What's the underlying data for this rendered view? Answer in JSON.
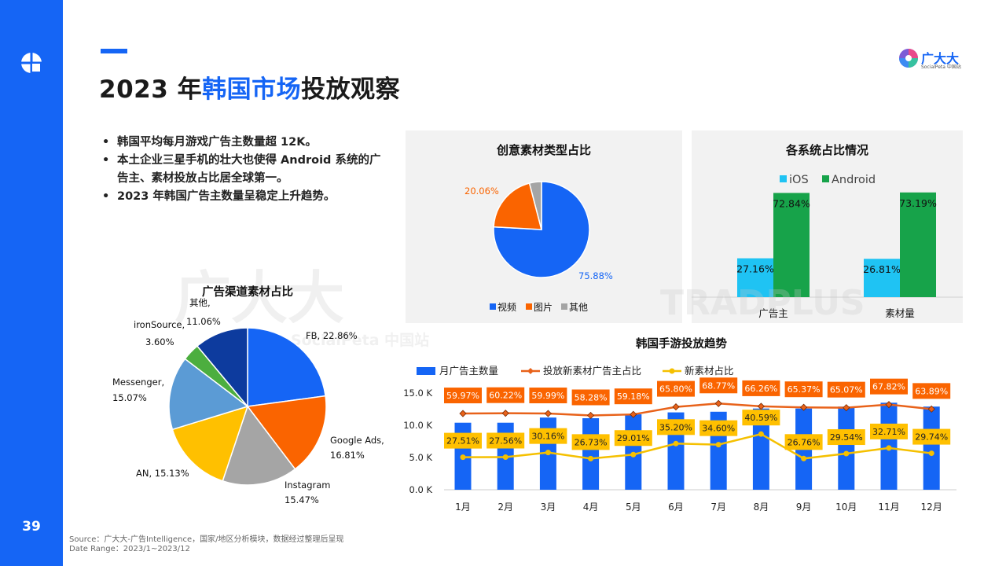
{
  "page": {
    "number": "39",
    "title_prefix": "2023 年",
    "title_highlight": "韩国市场",
    "title_suffix": "投放观察",
    "brand_name": "广大大",
    "brand_sub": "SocialPeta 中国站",
    "colors": {
      "accent": "#1565f5"
    }
  },
  "bullets": [
    "韩国平均每月游戏广告主数量超 12K。",
    "本土企业三星手机的壮大也使得 Android 系统的广告主、素材投放占比居全球第一。",
    "2023 年韩国广告主数量呈稳定上升趋势。"
  ],
  "watermarks": {
    "a": "广大大",
    "b": "SocialPeta 中国站",
    "c": "TRADPLUS"
  },
  "source": {
    "line1": "Source：广大大-广告Intelligence，国家/地区分析模块，数据经过整理后呈现",
    "line2": "Date Range：2023/1~2023/12"
  },
  "chart_data": [
    {
      "id": "channel_pie",
      "type": "pie",
      "title": "广告渠道素材占比",
      "labels": [
        "FB, 22.86%",
        "Google Ads, 16.81%",
        "Instagram 15.47%",
        "AN, 15.13%",
        "Messenger, 15.07%",
        "ironSource, 3.60%",
        "其他, 11.06%"
      ],
      "label_lines": [
        [
          "FB, 22.86%"
        ],
        [
          "Google Ads,",
          "16.81%"
        ],
        [
          "Instagram",
          "15.47%"
        ],
        [
          "AN, 15.13%"
        ],
        [
          "Messenger,",
          "15.07%"
        ],
        [
          "ironSource,",
          "3.60%"
        ],
        [
          "其他,",
          "11.06%"
        ]
      ],
      "values": [
        22.86,
        16.81,
        15.47,
        15.13,
        15.07,
        3.6,
        11.06
      ],
      "colors": [
        "#1565f5",
        "#fa6400",
        "#a5a5a5",
        "#ffc000",
        "#5b9bd5",
        "#4cae3f",
        "#0d3b9e"
      ]
    },
    {
      "id": "creative_type_pie",
      "type": "pie",
      "title": "创意素材类型占比",
      "labels": [
        "视频",
        "图片",
        "其他"
      ],
      "values": [
        75.88,
        20.06,
        4.06
      ],
      "value_labels": [
        "75.88%",
        "20.06%",
        ""
      ],
      "colors": [
        "#1565f5",
        "#fa6400",
        "#a5a5a5"
      ]
    },
    {
      "id": "system_share_bar",
      "type": "bar",
      "title": "各系统占比情况",
      "categories": [
        "广告主",
        "素材量"
      ],
      "series": [
        {
          "name": "iOS",
          "values": [
            27.16,
            26.81
          ],
          "labels": [
            "27.16%",
            "26.81%"
          ],
          "color": "#1fc3f3"
        },
        {
          "name": "Android",
          "values": [
            72.84,
            73.19
          ],
          "labels": [
            "72.84%",
            "73.19%"
          ],
          "color": "#17a34a"
        }
      ],
      "ylim": [
        0,
        100
      ]
    },
    {
      "id": "korea_trend",
      "type": "bar",
      "title": "韩国手游投放趋势",
      "categories": [
        "1月",
        "2月",
        "3月",
        "4月",
        "5月",
        "6月",
        "7月",
        "8月",
        "9月",
        "10月",
        "11月",
        "12月"
      ],
      "y_ticks": [
        "0.0 K",
        "5.0 K",
        "10.0 K",
        "15.0 K"
      ],
      "ylim": [
        0,
        15
      ],
      "series": [
        {
          "name": "月广告主数量",
          "kind": "bar",
          "color": "#1565f5",
          "values": [
            10.4,
            10.4,
            11.2,
            11.1,
            11.7,
            12.0,
            12.1,
            12.6,
            12.6,
            12.9,
            13.5,
            12.9
          ]
        },
        {
          "name": "投放新素材广告主占比",
          "kind": "line",
          "color": "#e8621a",
          "values": [
            59.97,
            60.22,
            59.99,
            58.28,
            59.18,
            65.8,
            68.77,
            66.26,
            65.37,
            65.07,
            67.82,
            63.89
          ],
          "labels": [
            "59.97%",
            "60.22%",
            "59.99%",
            "58.28%",
            "59.18%",
            "65.80%",
            "68.77%",
            "66.26%",
            "65.37%",
            "65.07%",
            "67.82%",
            "63.89%"
          ]
        },
        {
          "name": "新素材占比",
          "kind": "line",
          "color": "#f5c000",
          "values": [
            27.51,
            27.56,
            30.16,
            26.73,
            29.01,
            35.2,
            34.6,
            40.59,
            26.76,
            29.54,
            32.71,
            29.74
          ],
          "labels": [
            "27.51%",
            "27.56%",
            "30.16%",
            "26.73%",
            "29.01%",
            "35.20%",
            "34.60%",
            "40.59%",
            "26.76%",
            "29.54%",
            "32.71%",
            "29.74%"
          ]
        }
      ]
    }
  ]
}
